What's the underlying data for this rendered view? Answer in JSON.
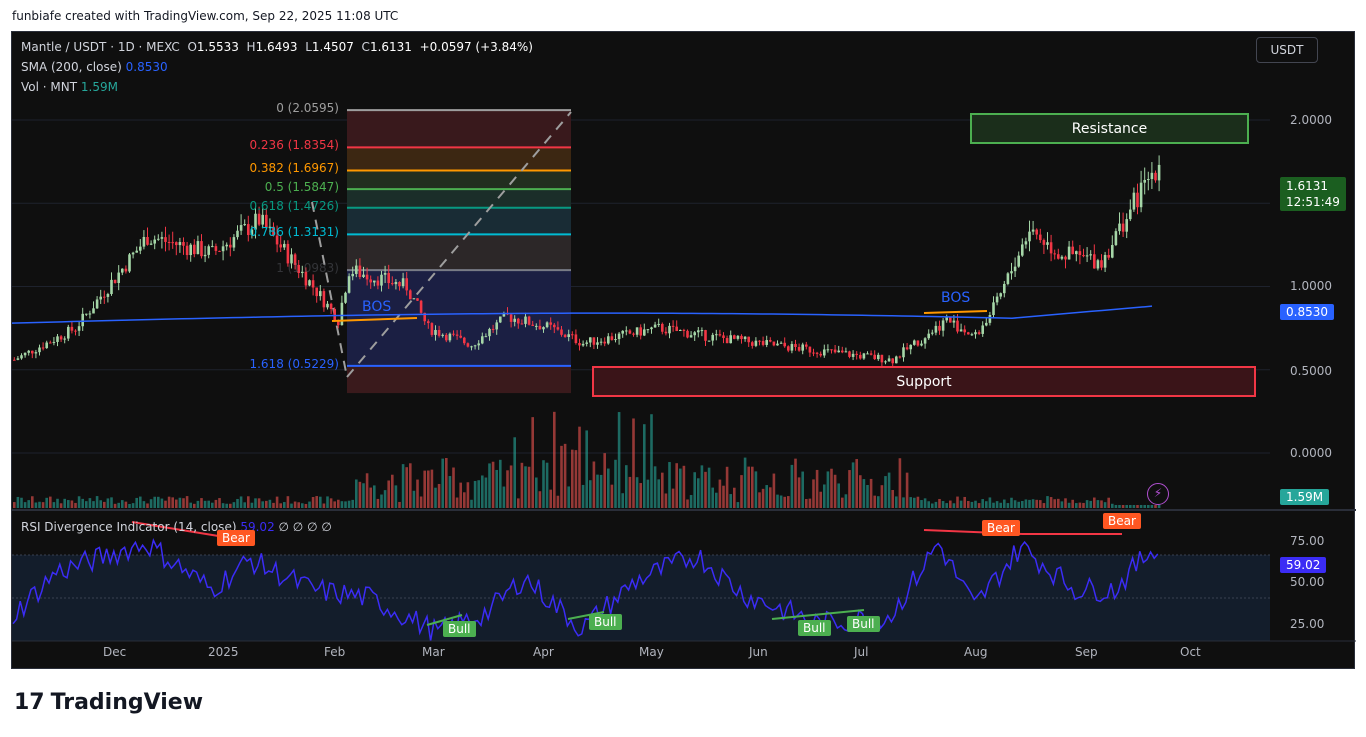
{
  "credit": "funbiafe created with TradingView.com, Sep 22, 2025 11:08 UTC",
  "header": {
    "symbol": "Mantle / USDT · 1D · MEXC",
    "o_label": "O",
    "o": "1.5533",
    "h_label": "H",
    "h": "1.6493",
    "l_label": "L",
    "l": "1.4507",
    "c_label": "C",
    "c": "1.6131",
    "change": "+0.0597 (+3.84%)",
    "sma_label": "SMA (200, close)",
    "sma_value": "0.8530",
    "vol_label": "Vol · MNT",
    "vol_value": "1.59M"
  },
  "currency_button": "USDT",
  "price_axis": [
    "2.0000",
    "1.0000",
    "0.5000",
    "0.0000"
  ],
  "tags": {
    "last_price": "1.6131",
    "countdown": "12:51:49",
    "sma": "0.8530",
    "volume": "1.59M",
    "rsi": "59.02"
  },
  "rsi_axis": [
    "75.00",
    "50.00",
    "25.00"
  ],
  "rsi_header": {
    "label": "RSI Divergence Indicator (14, close)",
    "value": "59.02",
    "extras": "∅ ∅ ∅ ∅"
  },
  "time_axis": [
    "Dec",
    "2025",
    "Feb",
    "Mar",
    "Apr",
    "May",
    "Jun",
    "Jul",
    "Aug",
    "Sep",
    "Oct"
  ],
  "fib_levels": [
    {
      "label": "0 (2.0595)",
      "price": 2.0595,
      "color": "#9e9e9e"
    },
    {
      "label": "0.236 (1.8354)",
      "price": 1.8354,
      "color": "#f23645"
    },
    {
      "label": "0.382 (1.6967)",
      "price": 1.6967,
      "color": "#ff9800"
    },
    {
      "label": "0.5 (1.5847)",
      "price": 1.5847,
      "color": "#4caf50"
    },
    {
      "label": "0.618 (1.4726)",
      "price": 1.4726,
      "color": "#089981"
    },
    {
      "label": "0.786 (1.3131)",
      "price": 1.3131,
      "color": "#00bcd4"
    },
    {
      "label": "1 (1.0983)",
      "price": 1.0983,
      "color": "#787b86"
    },
    {
      "label": "1.618 (0.5229)",
      "price": 0.5229,
      "color": "#2962ff"
    }
  ],
  "annotations": {
    "resistance": "Resistance",
    "support": "Support",
    "bos": "BOS",
    "bear": "Bear",
    "bull": "Bull"
  },
  "colors": {
    "up": "#a5d6a7",
    "down": "#f23645",
    "sma": "#2962ff",
    "rsi": "#3b2cf5",
    "volume_up": "#26a69a",
    "volume_down": "#ef5350"
  },
  "chart_data": {
    "type": "candlestick",
    "ylim": [
      0,
      2.0
    ],
    "approx_close_path": {
      "dates": [
        "2024-11-03",
        "2024-11-20",
        "2024-12-10",
        "2024-12-28",
        "2025-01-10",
        "2025-01-25",
        "2025-02-01",
        "2025-02-04",
        "2025-02-20",
        "2025-02-26",
        "2025-03-10",
        "2025-03-20",
        "2025-04-01",
        "2025-04-10",
        "2025-05-01",
        "2025-05-15",
        "2025-06-01",
        "2025-06-20",
        "2025-07-05",
        "2025-07-20",
        "2025-07-28",
        "2025-08-03",
        "2025-08-12",
        "2025-08-20",
        "2025-09-01",
        "2025-09-10",
        "2025-09-17",
        "2025-09-22"
      ],
      "prices": [
        0.56,
        0.75,
        1.3,
        1.2,
        1.4,
        1.0,
        0.8,
        1.1,
        1.0,
        0.75,
        0.65,
        0.82,
        0.75,
        0.66,
        0.75,
        0.7,
        0.65,
        0.6,
        0.56,
        0.8,
        0.7,
        0.9,
        1.35,
        1.2,
        1.15,
        1.5,
        1.75,
        1.61
      ]
    },
    "rsi_path": {
      "dates": [
        "2024-11-03",
        "2024-11-15",
        "2024-12-10",
        "2024-12-28",
        "2025-01-08",
        "2025-01-25",
        "2025-02-10",
        "2025-03-01",
        "2025-03-15",
        "2025-03-25",
        "2025-04-10",
        "2025-04-25",
        "2025-05-12",
        "2025-05-25",
        "2025-06-15",
        "2025-07-05",
        "2025-07-18",
        "2025-07-28",
        "2025-08-10",
        "2025-08-25",
        "2025-09-05",
        "2025-09-16",
        "2025-09-22"
      ],
      "values": [
        40,
        65,
        82,
        55,
        72,
        55,
        50,
        30,
        42,
        62,
        32,
        60,
        75,
        52,
        35,
        40,
        82,
        45,
        80,
        55,
        55,
        80,
        59
      ]
    }
  }
}
